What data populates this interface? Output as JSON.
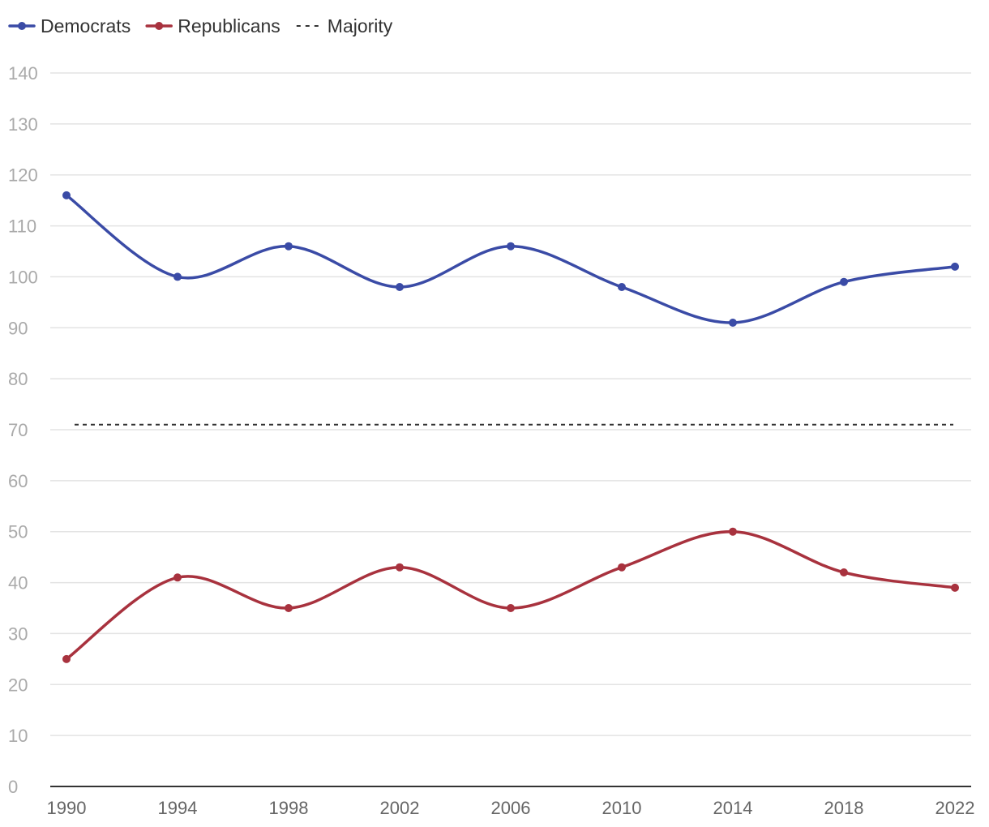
{
  "chart_data": {
    "type": "line",
    "title": "",
    "xlabel": "",
    "ylabel": "",
    "x": [
      1990,
      1994,
      1998,
      2002,
      2006,
      2010,
      2014,
      2018,
      2022
    ],
    "ylim": [
      0,
      140
    ],
    "yticks": [
      0,
      10,
      20,
      30,
      40,
      50,
      60,
      70,
      80,
      90,
      100,
      110,
      120,
      130,
      140
    ],
    "grid": true,
    "legend_position": "top-left",
    "series": [
      {
        "name": "Democrats",
        "color": "#3a4ba6",
        "values": [
          116,
          100,
          106,
          98,
          106,
          98,
          91,
          99,
          102
        ]
      },
      {
        "name": "Republicans",
        "color": "#a8323e",
        "values": [
          25,
          41,
          35,
          43,
          35,
          43,
          50,
          42,
          39
        ]
      }
    ],
    "reference_lines": [
      {
        "name": "Majority",
        "value": 71,
        "style": "dashed",
        "color": "#333333"
      }
    ]
  }
}
